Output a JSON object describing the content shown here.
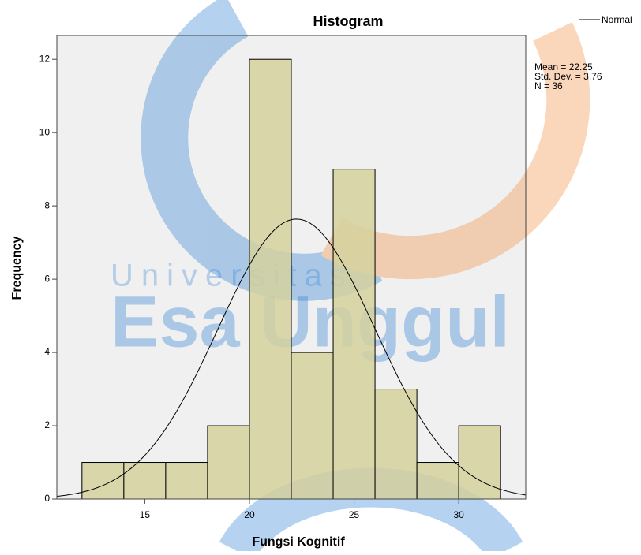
{
  "chart_data": {
    "type": "histogram",
    "title": "Histogram",
    "x_label": "Fungsi Kognitif",
    "y_label": "Frequency",
    "bins": [
      12,
      14,
      16,
      18,
      20,
      22,
      24,
      26,
      28,
      30,
      32
    ],
    "counts": [
      1,
      1,
      1,
      2,
      12,
      4,
      9,
      3,
      1,
      2
    ],
    "color": "#d5d19d",
    "xlim": [
      10.8,
      33.2
    ],
    "xticks": [
      15,
      20,
      25,
      30
    ],
    "ylim": [
      0,
      12.65
    ],
    "yticks": [
      0,
      2,
      4,
      6,
      8,
      10,
      12
    ],
    "normal": {
      "name": "Normal",
      "mean": 22.25,
      "std_dev": 3.76,
      "n": 36
    },
    "stats_text": [
      "Mean = 22.25",
      "Std. Dev. = 3.76",
      "N = 36"
    ],
    "watermark": [
      "Universitas",
      "Esa Unggul"
    ]
  }
}
